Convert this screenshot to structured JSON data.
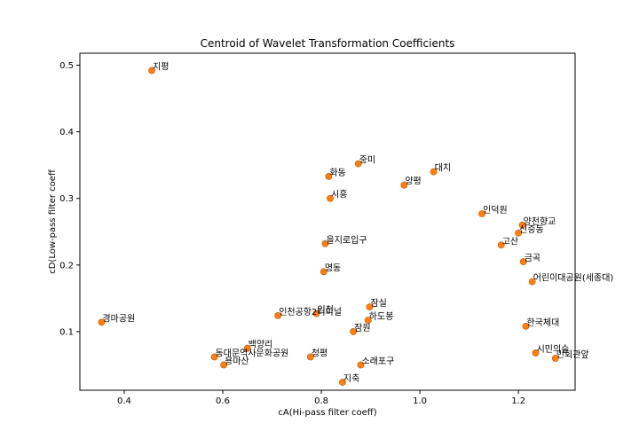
{
  "chart_data": {
    "type": "scatter",
    "title": "Centroid of Wavelet Transformation Coefficients",
    "xlabel": "cA(Hi-pass filter coeff)",
    "ylabel": "cD(Low-pass filter coeff",
    "xlim": [
      0.31,
      1.315
    ],
    "ylim": [
      0.012,
      0.518
    ],
    "xticks": [
      0.4,
      0.6,
      0.8,
      1.0,
      1.2
    ],
    "xtick_labels": [
      "0.4",
      "0.6",
      "0.8",
      "1.0",
      "1.2"
    ],
    "yticks": [
      0.1,
      0.2,
      0.3,
      0.4,
      0.5
    ],
    "ytick_labels": [
      "0.1",
      "0.2",
      "0.3",
      "0.4",
      "0.5"
    ],
    "grid": false,
    "marker_color": "#ff7f0e",
    "labeled_points": [
      {
        "label": "지평",
        "x": 0.456,
        "y": 0.492
      },
      {
        "label": "경마공원",
        "x": 0.354,
        "y": 0.114
      },
      {
        "label": "화동",
        "x": 0.815,
        "y": 0.333
      },
      {
        "label": "중미",
        "x": 0.875,
        "y": 0.352
      },
      {
        "label": "대치",
        "x": 1.028,
        "y": 0.34
      },
      {
        "label": "양평",
        "x": 0.968,
        "y": 0.32
      },
      {
        "label": "시흥",
        "x": 0.818,
        "y": 0.3
      },
      {
        "label": "인덕원",
        "x": 1.126,
        "y": 0.277
      },
      {
        "label": "양천향교",
        "x": 1.208,
        "y": 0.26
      },
      {
        "label": "신중동",
        "x": 1.2,
        "y": 0.248
      },
      {
        "label": "고산",
        "x": 1.165,
        "y": 0.23
      },
      {
        "label": "을지로입구",
        "x": 0.808,
        "y": 0.232
      },
      {
        "label": "금곡",
        "x": 1.21,
        "y": 0.205
      },
      {
        "label": "명동",
        "x": 0.805,
        "y": 0.19
      },
      {
        "label": "어린이대공원(세종대)",
        "x": 1.228,
        "y": 0.175
      },
      {
        "label": "인천공항2터미널",
        "x": 0.712,
        "y": 0.124
      },
      {
        "label": "인천",
        "x": 0.79,
        "y": 0.127
      },
      {
        "label": "잠실",
        "x": 0.898,
        "y": 0.137
      },
      {
        "label": "하도봉",
        "x": 0.895,
        "y": 0.117
      },
      {
        "label": "잠원",
        "x": 0.865,
        "y": 0.1
      },
      {
        "label": "한국체대",
        "x": 1.215,
        "y": 0.108
      },
      {
        "label": "백양리",
        "x": 0.65,
        "y": 0.075
      },
      {
        "label": "동대문역사문화공원",
        "x": 0.583,
        "y": 0.062
      },
      {
        "label": "용마산",
        "x": 0.602,
        "y": 0.05
      },
      {
        "label": "청평",
        "x": 0.778,
        "y": 0.062
      },
      {
        "label": "시민의숲",
        "x": 1.235,
        "y": 0.068
      },
      {
        "label": "민회관앞",
        "x": 1.275,
        "y": 0.06
      },
      {
        "label": "지축",
        "x": 0.843,
        "y": 0.024
      },
      {
        "label": "소래포구",
        "x": 0.88,
        "y": 0.05
      }
    ]
  }
}
